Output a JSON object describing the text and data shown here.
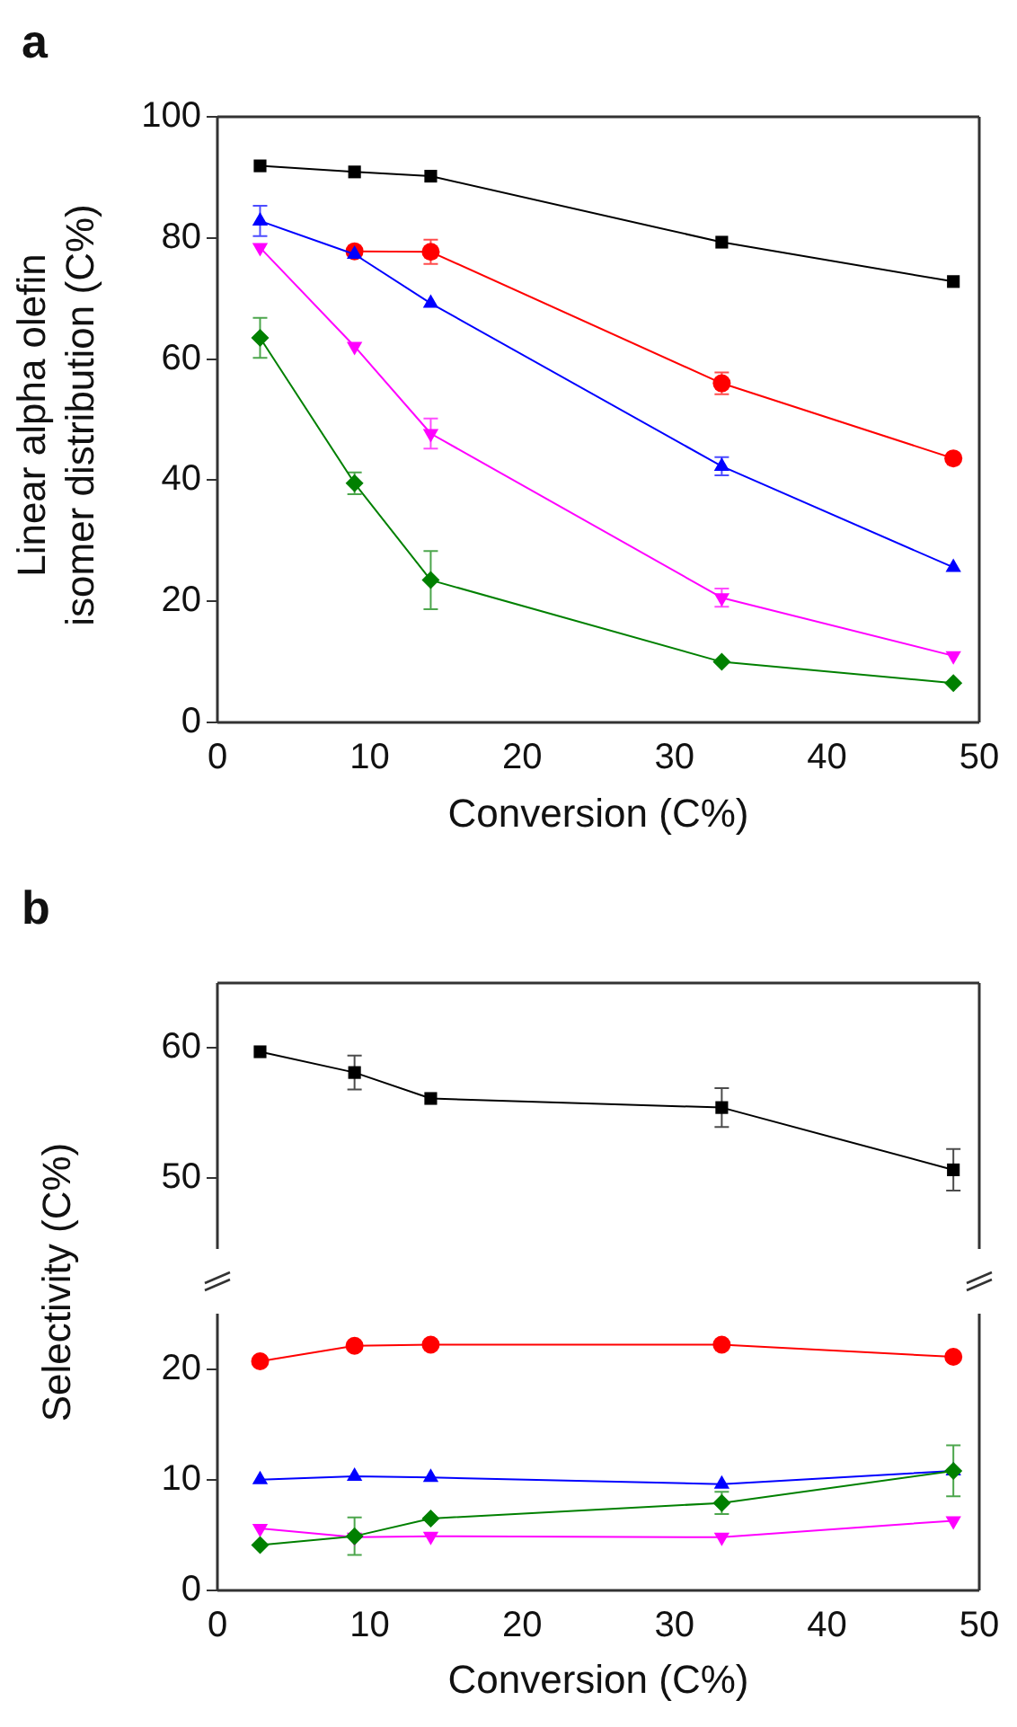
{
  "chart_data": [
    {
      "type": "line",
      "title": "a",
      "xlabel": "Conversion (C%)",
      "ylabel": "Linear alpha olefin isomer distribution (C%)",
      "x": [
        2.8,
        9,
        14,
        33.1,
        48.3
      ],
      "xlim": [
        0,
        50
      ],
      "xticks": [
        0,
        10,
        20,
        30,
        40,
        50
      ],
      "ylim": [
        0,
        100
      ],
      "yticks": [
        0,
        20,
        40,
        60,
        80,
        100
      ],
      "series": [
        {
          "color": "#000000",
          "marker": "square",
          "values": [
            91.9,
            90.9,
            90.2,
            79.3,
            72.8
          ]
        },
        {
          "color": "#ff0000",
          "marker": "circle",
          "values": [
            null,
            77.8,
            77.7,
            56.0,
            43.6
          ],
          "errors": [
            null,
            null,
            2,
            1.8,
            null
          ]
        },
        {
          "color": "#0000ff",
          "marker": "triangle",
          "values": [
            82.8,
            77.3,
            69.2,
            42.3,
            25.6
          ],
          "errors": [
            2.5,
            null,
            null,
            1.5,
            null
          ]
        },
        {
          "color": "#ff00ff",
          "marker": "triangle-down",
          "values": [
            78.4,
            62.1,
            47.7,
            20.6,
            11.0
          ],
          "errors": [
            null,
            null,
            2.5,
            1.5,
            null
          ]
        },
        {
          "color": "#008000",
          "marker": "diamond",
          "values": [
            63.5,
            39.5,
            23.5,
            10.0,
            6.5
          ],
          "errors": [
            3.3,
            1.8,
            4.8,
            null,
            null
          ]
        }
      ]
    },
    {
      "type": "line",
      "title": "b",
      "ylabel": "Selectivity (C%)",
      "x": [
        2.8,
        9,
        14,
        33.1,
        48.3
      ],
      "xlim": [
        0,
        50
      ],
      "ylim": [
        44.5,
        65
      ],
      "yticks": [
        50,
        60
      ],
      "tick_labels": "y",
      "series": [
        {
          "color": "#000000",
          "marker": "square",
          "values": [
            59.7,
            58.1,
            56.1,
            55.4,
            50.6
          ],
          "errors": [
            null,
            1.3,
            null,
            1.5,
            1.6
          ]
        }
      ]
    },
    {
      "type": "line",
      "xlabel": "Conversion (C%)",
      "x": [
        2.8,
        9,
        14,
        33.1,
        48.3
      ],
      "xlim": [
        0,
        50
      ],
      "xticks": [
        0,
        10,
        20,
        30,
        40,
        50
      ],
      "ylim": [
        0,
        25
      ],
      "yticks": [
        0,
        10,
        20
      ],
      "series": [
        {
          "color": "#ff0000",
          "marker": "circle",
          "values": [
            20.7,
            22.1,
            22.2,
            22.2,
            21.1
          ]
        },
        {
          "color": "#0000ff",
          "marker": "triangle",
          "values": [
            10.0,
            10.3,
            10.2,
            9.6,
            10.8
          ]
        },
        {
          "color": "#ff00ff",
          "marker": "triangle-down",
          "values": [
            5.6,
            4.8,
            4.9,
            4.8,
            6.3
          ]
        },
        {
          "color": "#008000",
          "marker": "diamond",
          "values": [
            4.1,
            4.9,
            6.5,
            7.9,
            10.8
          ],
          "errors": [
            null,
            1.7,
            null,
            1.0,
            2.3
          ]
        }
      ]
    }
  ]
}
